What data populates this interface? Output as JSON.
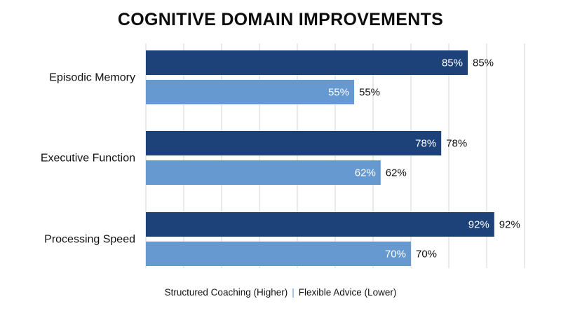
{
  "chart_data": {
    "type": "bar",
    "orientation": "horizontal",
    "title": "COGNITIVE DOMAIN IMPROVEMENTS",
    "categories": [
      "Episodic Memory",
      "Executive Function",
      "Processing Speed"
    ],
    "series": [
      {
        "values": [
          85,
          78,
          92
        ],
        "color": "#1d4279"
      },
      {
        "values": [
          55,
          62,
          70
        ],
        "color": "#6699cf"
      }
    ],
    "value_suffix": "%",
    "xlim": [
      0,
      100
    ],
    "grid": true,
    "legend": {
      "position": "bottom",
      "text_left": "Structured Coaching (Higher)",
      "separator": "|",
      "text_right": "Flexible Advice (Lower)"
    }
  }
}
